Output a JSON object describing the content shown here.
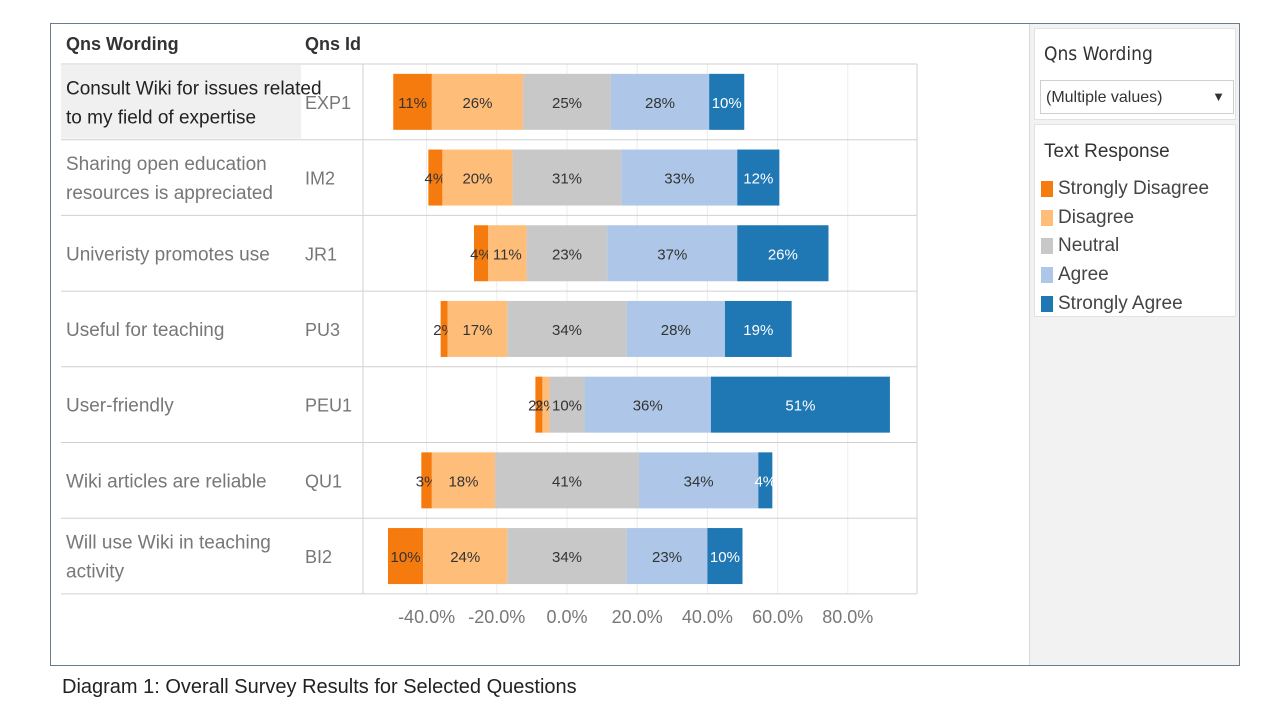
{
  "caption": "Diagram 1: Overall Survey Results for Selected Questions",
  "table_headers": {
    "wording": "Qns Wording",
    "id": "Qns Id"
  },
  "sidebar": {
    "filter": {
      "title": "Qns Wording",
      "value": "(Multiple values)",
      "caret": "▼"
    },
    "legend": {
      "title": "Text Response",
      "items": [
        {
          "label": "Strongly Disagree",
          "color": "#f57b0e"
        },
        {
          "label": "Disagree",
          "color": "#ffbd7a"
        },
        {
          "label": "Neutral",
          "color": "#c8c8c8"
        },
        {
          "label": "Agree",
          "color": "#aec7e8"
        },
        {
          "label": "Strongly Agree",
          "color": "#1f77b4"
        }
      ]
    }
  },
  "chart_data": {
    "type": "bar",
    "orientation": "horizontal-diverging-stacked",
    "categories": [
      {
        "wording": [
          "Consult Wiki for issues related",
          "to my field of expertise"
        ],
        "id": "EXP1"
      },
      {
        "wording": [
          "Sharing open education",
          "resources is appreciated"
        ],
        "id": "IM2"
      },
      {
        "wording": [
          "Univeristy promotes use"
        ],
        "id": "JR1"
      },
      {
        "wording": [
          "Useful for teaching"
        ],
        "id": "PU3"
      },
      {
        "wording": [
          "User-friendly"
        ],
        "id": "PEU1"
      },
      {
        "wording": [
          "Wiki articles are reliable"
        ],
        "id": "QU1"
      },
      {
        "wording": [
          "Will use Wiki in teaching",
          "activity"
        ],
        "id": "BI2"
      }
    ],
    "series": [
      {
        "name": "Strongly Disagree",
        "values": [
          11,
          4,
          4,
          2,
          2,
          3,
          10
        ]
      },
      {
        "name": "Disagree",
        "values": [
          26,
          20,
          11,
          17,
          2,
          18,
          24
        ]
      },
      {
        "name": "Neutral",
        "values": [
          25,
          31,
          23,
          34,
          10,
          41,
          34
        ]
      },
      {
        "name": "Agree",
        "values": [
          28,
          33,
          37,
          28,
          36,
          34,
          23
        ]
      },
      {
        "name": "Strongly Agree",
        "values": [
          10,
          12,
          26,
          19,
          51,
          4,
          10
        ]
      }
    ],
    "xlim": [
      -50,
      100
    ],
    "xticks": [
      -40,
      -20,
      0,
      20,
      40,
      60,
      80
    ],
    "xtick_labels": [
      "-40.0%",
      "-20.0%",
      "0.0%",
      "20.0%",
      "40.0%",
      "60.0%",
      "80.0%"
    ],
    "grid": true,
    "legend_position": "right"
  }
}
